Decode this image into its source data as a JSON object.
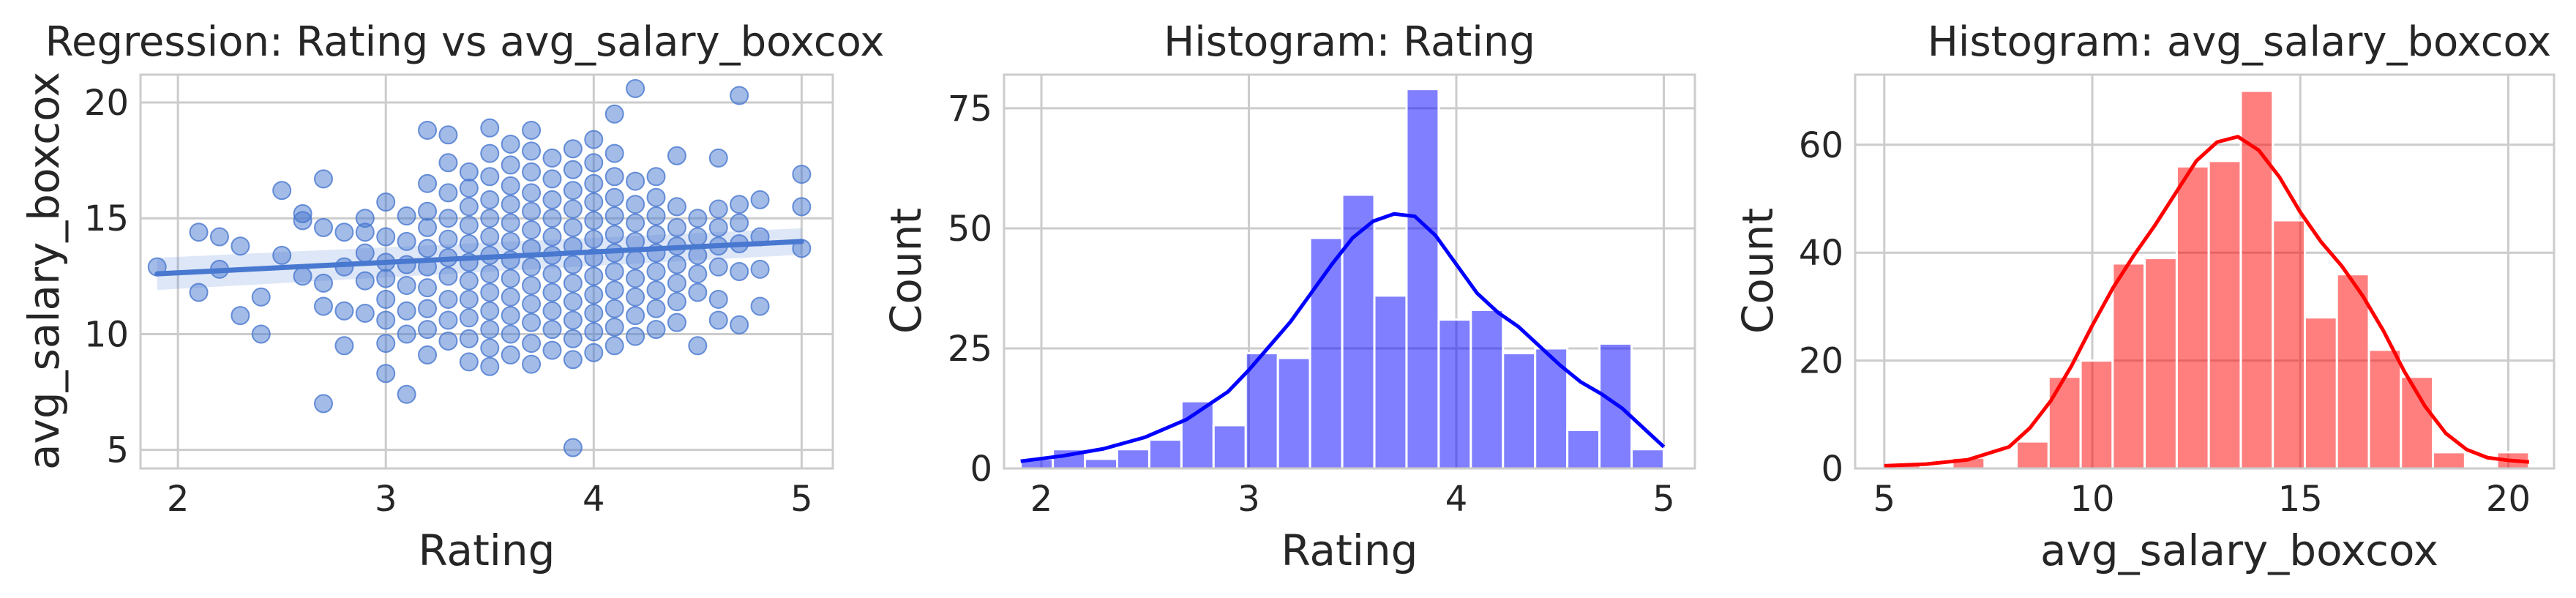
{
  "chart_data": [
    {
      "type": "scatter",
      "title": "Regression: Rating vs avg_salary_boxcox",
      "xlabel": "Rating",
      "ylabel": "avg_salary_boxcox",
      "xlim": [
        1.82,
        5.15
      ],
      "ylim": [
        4.2,
        21.2
      ],
      "xticks": [
        "2",
        "3",
        "4",
        "5"
      ],
      "yticks": [
        "5",
        "10",
        "15",
        "20"
      ],
      "grid": true,
      "color": "#4878d0",
      "regression": {
        "x": [
          1.9,
          5.0
        ],
        "y": [
          12.6,
          14.0
        ]
      },
      "points": [
        [
          1.9,
          12.9
        ],
        [
          2.1,
          14.4
        ],
        [
          2.1,
          11.8
        ],
        [
          2.2,
          14.2
        ],
        [
          2.2,
          12.8
        ],
        [
          2.3,
          10.8
        ],
        [
          2.3,
          13.8
        ],
        [
          2.4,
          11.6
        ],
        [
          2.4,
          10.0
        ],
        [
          2.5,
          16.2
        ],
        [
          2.5,
          13.4
        ],
        [
          2.6,
          15.2
        ],
        [
          2.6,
          14.9
        ],
        [
          2.6,
          12.5
        ],
        [
          2.7,
          16.7
        ],
        [
          2.7,
          14.6
        ],
        [
          2.7,
          12.2
        ],
        [
          2.7,
          11.2
        ],
        [
          2.7,
          7.0
        ],
        [
          2.8,
          14.4
        ],
        [
          2.8,
          12.9
        ],
        [
          2.8,
          11.0
        ],
        [
          2.8,
          9.5
        ],
        [
          2.9,
          15.0
        ],
        [
          2.9,
          14.4
        ],
        [
          2.9,
          13.5
        ],
        [
          2.9,
          12.3
        ],
        [
          2.9,
          10.9
        ],
        [
          3.0,
          15.7
        ],
        [
          3.0,
          14.2
        ],
        [
          3.0,
          13.1
        ],
        [
          3.0,
          12.4
        ],
        [
          3.0,
          11.5
        ],
        [
          3.0,
          10.6
        ],
        [
          3.0,
          9.6
        ],
        [
          3.0,
          8.3
        ],
        [
          3.1,
          15.1
        ],
        [
          3.1,
          14.0
        ],
        [
          3.1,
          13.0
        ],
        [
          3.1,
          12.1
        ],
        [
          3.1,
          11.0
        ],
        [
          3.1,
          10.0
        ],
        [
          3.1,
          7.4
        ],
        [
          3.2,
          18.8
        ],
        [
          3.2,
          16.5
        ],
        [
          3.2,
          15.3
        ],
        [
          3.2,
          14.6
        ],
        [
          3.2,
          13.7
        ],
        [
          3.2,
          12.9
        ],
        [
          3.2,
          12.0
        ],
        [
          3.2,
          11.1
        ],
        [
          3.2,
          10.2
        ],
        [
          3.2,
          9.1
        ],
        [
          3.3,
          18.6
        ],
        [
          3.3,
          17.4
        ],
        [
          3.3,
          16.1
        ],
        [
          3.3,
          15.0
        ],
        [
          3.3,
          14.1
        ],
        [
          3.3,
          13.3
        ],
        [
          3.3,
          12.5
        ],
        [
          3.3,
          11.5
        ],
        [
          3.3,
          10.6
        ],
        [
          3.3,
          9.7
        ],
        [
          3.4,
          17.0
        ],
        [
          3.4,
          16.3
        ],
        [
          3.4,
          15.5
        ],
        [
          3.4,
          14.7
        ],
        [
          3.4,
          13.9
        ],
        [
          3.4,
          13.1
        ],
        [
          3.4,
          12.3
        ],
        [
          3.4,
          11.5
        ],
        [
          3.4,
          10.7
        ],
        [
          3.4,
          9.8
        ],
        [
          3.4,
          8.8
        ],
        [
          3.5,
          18.9
        ],
        [
          3.5,
          17.8
        ],
        [
          3.5,
          16.8
        ],
        [
          3.5,
          15.8
        ],
        [
          3.5,
          15.0
        ],
        [
          3.5,
          14.2
        ],
        [
          3.5,
          13.4
        ],
        [
          3.5,
          12.6
        ],
        [
          3.5,
          11.8
        ],
        [
          3.5,
          11.0
        ],
        [
          3.5,
          10.2
        ],
        [
          3.5,
          9.4
        ],
        [
          3.5,
          8.6
        ],
        [
          3.6,
          18.2
        ],
        [
          3.6,
          17.3
        ],
        [
          3.6,
          16.4
        ],
        [
          3.6,
          15.6
        ],
        [
          3.6,
          14.8
        ],
        [
          3.6,
          14.0
        ],
        [
          3.6,
          13.2
        ],
        [
          3.6,
          12.4
        ],
        [
          3.6,
          11.6
        ],
        [
          3.6,
          10.8
        ],
        [
          3.6,
          10.0
        ],
        [
          3.6,
          9.1
        ],
        [
          3.7,
          18.8
        ],
        [
          3.7,
          17.9
        ],
        [
          3.7,
          17.0
        ],
        [
          3.7,
          16.1
        ],
        [
          3.7,
          15.3
        ],
        [
          3.7,
          14.5
        ],
        [
          3.7,
          13.7
        ],
        [
          3.7,
          12.9
        ],
        [
          3.7,
          12.1
        ],
        [
          3.7,
          11.3
        ],
        [
          3.7,
          10.5
        ],
        [
          3.7,
          9.6
        ],
        [
          3.7,
          8.7
        ],
        [
          3.8,
          17.6
        ],
        [
          3.8,
          16.7
        ],
        [
          3.8,
          15.8
        ],
        [
          3.8,
          15.0
        ],
        [
          3.8,
          14.2
        ],
        [
          3.8,
          13.4
        ],
        [
          3.8,
          12.6
        ],
        [
          3.8,
          11.8
        ],
        [
          3.8,
          11.0
        ],
        [
          3.8,
          10.2
        ],
        [
          3.8,
          9.3
        ],
        [
          3.9,
          18.0
        ],
        [
          3.9,
          17.1
        ],
        [
          3.9,
          16.2
        ],
        [
          3.9,
          15.4
        ],
        [
          3.9,
          14.6
        ],
        [
          3.9,
          13.8
        ],
        [
          3.9,
          13.0
        ],
        [
          3.9,
          12.2
        ],
        [
          3.9,
          11.4
        ],
        [
          3.9,
          10.6
        ],
        [
          3.9,
          9.8
        ],
        [
          3.9,
          8.9
        ],
        [
          3.9,
          5.1
        ],
        [
          4.0,
          18.4
        ],
        [
          4.0,
          17.4
        ],
        [
          4.0,
          16.5
        ],
        [
          4.0,
          15.7
        ],
        [
          4.0,
          14.9
        ],
        [
          4.0,
          14.1
        ],
        [
          4.0,
          13.3
        ],
        [
          4.0,
          12.5
        ],
        [
          4.0,
          11.7
        ],
        [
          4.0,
          10.9
        ],
        [
          4.0,
          10.1
        ],
        [
          4.0,
          9.2
        ],
        [
          4.1,
          17.8
        ],
        [
          4.1,
          16.8
        ],
        [
          4.1,
          15.9
        ],
        [
          4.1,
          15.1
        ],
        [
          4.1,
          14.3
        ],
        [
          4.1,
          13.5
        ],
        [
          4.1,
          12.7
        ],
        [
          4.1,
          11.9
        ],
        [
          4.1,
          11.1
        ],
        [
          4.1,
          10.3
        ],
        [
          4.1,
          9.5
        ],
        [
          4.1,
          19.5
        ],
        [
          4.2,
          20.6
        ],
        [
          4.2,
          16.6
        ],
        [
          4.2,
          15.6
        ],
        [
          4.2,
          14.8
        ],
        [
          4.2,
          14.0
        ],
        [
          4.2,
          13.2
        ],
        [
          4.2,
          12.4
        ],
        [
          4.2,
          11.6
        ],
        [
          4.2,
          10.8
        ],
        [
          4.2,
          9.9
        ],
        [
          4.3,
          16.8
        ],
        [
          4.3,
          15.9
        ],
        [
          4.3,
          15.1
        ],
        [
          4.3,
          14.3
        ],
        [
          4.3,
          13.5
        ],
        [
          4.3,
          12.7
        ],
        [
          4.3,
          11.9
        ],
        [
          4.3,
          11.1
        ],
        [
          4.3,
          10.2
        ],
        [
          4.4,
          17.7
        ],
        [
          4.4,
          15.5
        ],
        [
          4.4,
          14.6
        ],
        [
          4.4,
          13.8
        ],
        [
          4.4,
          13.0
        ],
        [
          4.4,
          12.2
        ],
        [
          4.4,
          11.4
        ],
        [
          4.4,
          10.5
        ],
        [
          4.5,
          15.0
        ],
        [
          4.5,
          14.2
        ],
        [
          4.5,
          13.4
        ],
        [
          4.5,
          12.6
        ],
        [
          4.5,
          11.8
        ],
        [
          4.5,
          9.5
        ],
        [
          4.6,
          17.6
        ],
        [
          4.6,
          15.4
        ],
        [
          4.6,
          14.6
        ],
        [
          4.6,
          13.8
        ],
        [
          4.6,
          12.9
        ],
        [
          4.6,
          11.5
        ],
        [
          4.6,
          10.6
        ],
        [
          4.7,
          20.3
        ],
        [
          4.7,
          15.6
        ],
        [
          4.7,
          14.8
        ],
        [
          4.7,
          13.9
        ],
        [
          4.7,
          12.7
        ],
        [
          4.7,
          10.4
        ],
        [
          4.8,
          15.8
        ],
        [
          4.8,
          14.2
        ],
        [
          4.8,
          12.8
        ],
        [
          4.8,
          11.2
        ],
        [
          5.0,
          16.9
        ],
        [
          5.0,
          15.5
        ],
        [
          5.0,
          13.7
        ]
      ]
    },
    {
      "type": "bar",
      "title": "Histogram: Rating",
      "xlabel": "Rating",
      "ylabel": "Count",
      "xlim": [
        1.82,
        5.15
      ],
      "ylim": [
        0,
        82
      ],
      "xticks": [
        "2",
        "3",
        "4",
        "5"
      ],
      "yticks": [
        "0",
        "25",
        "50",
        "75"
      ],
      "grid": true,
      "color": "#0000ff",
      "bin_edges": [
        1.9,
        2.055,
        2.21,
        2.365,
        2.52,
        2.675,
        2.83,
        2.985,
        3.14,
        3.295,
        3.45,
        3.605,
        3.76,
        3.915,
        4.07,
        4.225,
        4.38,
        4.535,
        4.69,
        4.845,
        5.0
      ],
      "values": [
        2,
        4,
        2,
        4,
        6,
        14,
        9,
        24,
        23,
        48,
        57,
        36,
        79,
        31,
        33,
        24,
        25,
        8,
        26,
        4
      ],
      "kde": {
        "x": [
          1.9,
          2.1,
          2.3,
          2.5,
          2.7,
          2.9,
          3.0,
          3.1,
          3.2,
          3.3,
          3.4,
          3.5,
          3.6,
          3.7,
          3.8,
          3.9,
          4.0,
          4.1,
          4.2,
          4.3,
          4.4,
          4.5,
          4.6,
          4.7,
          4.8,
          4.9,
          5.0
        ],
        "y": [
          1.5,
          2.6,
          4.1,
          6.5,
          10.2,
          16.0,
          20.5,
          25.5,
          30.5,
          36.5,
          42.5,
          48.0,
          51.5,
          53.0,
          52.5,
          48.5,
          42.5,
          36.5,
          32.5,
          29.5,
          25.5,
          21.5,
          18.0,
          15.5,
          12.5,
          8.5,
          4.5
        ]
      }
    },
    {
      "type": "bar",
      "title": "Histogram: avg_salary_boxcox",
      "xlabel": "avg_salary_boxcox",
      "ylabel": "Count",
      "xlim": [
        4.3,
        21.1
      ],
      "ylim": [
        0,
        73
      ],
      "xticks": [
        "5",
        "10",
        "15",
        "20"
      ],
      "yticks": [
        "0",
        "20",
        "40",
        "60"
      ],
      "grid": true,
      "color": "#ff0000",
      "bin_edges": [
        5.1,
        5.87,
        6.64,
        7.41,
        8.18,
        8.95,
        9.72,
        10.49,
        11.26,
        12.03,
        12.8,
        13.57,
        14.34,
        15.11,
        15.88,
        16.65,
        17.42,
        18.19,
        18.96,
        19.73,
        20.5
      ],
      "values": [
        1,
        0,
        2,
        0,
        5,
        17,
        20,
        38,
        39,
        56,
        57,
        70,
        46,
        28,
        36,
        22,
        17,
        3,
        0,
        3
      ],
      "kde": {
        "x": [
          5.0,
          6.0,
          7.0,
          8.0,
          8.5,
          9.0,
          9.5,
          10.0,
          10.5,
          11.0,
          11.5,
          12.0,
          12.5,
          13.0,
          13.5,
          14.0,
          14.5,
          15.0,
          15.5,
          16.0,
          16.5,
          17.0,
          17.5,
          18.0,
          18.5,
          19.0,
          19.5,
          20.0,
          20.5
        ],
        "y": [
          0.5,
          0.8,
          1.6,
          4.0,
          7.5,
          12.5,
          19.0,
          26.5,
          33.5,
          39.5,
          45.0,
          51.0,
          57.0,
          60.5,
          61.5,
          59.0,
          54.0,
          47.5,
          42.0,
          37.5,
          32.0,
          25.5,
          18.0,
          11.5,
          6.5,
          3.5,
          2.0,
          1.5,
          1.2
        ]
      }
    }
  ]
}
